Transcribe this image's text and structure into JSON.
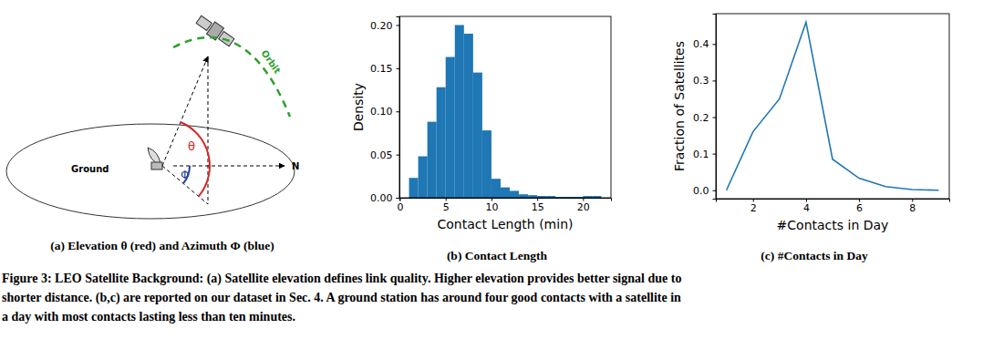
{
  "chart_data": [
    {
      "type": "histogram",
      "title": "(b) Contact Length",
      "x_label": "Contact Length (min)",
      "y_label": "Density",
      "bins": [
        1,
        2,
        3,
        4,
        5,
        6,
        7,
        8,
        9,
        10,
        11,
        12,
        13,
        14,
        15,
        16,
        17,
        18,
        19,
        20,
        21,
        22
      ],
      "values": [
        0.023,
        0.048,
        0.088,
        0.128,
        0.163,
        0.2,
        0.19,
        0.145,
        0.078,
        0.022,
        0.012,
        0.008,
        0.004,
        0.003,
        0.002,
        0.002,
        0.001,
        0.001,
        0.001,
        0.002,
        0.002
      ],
      "color": "#1f77b4",
      "xlim": [
        -0.05,
        23.05
      ],
      "xticks": [
        0,
        5,
        10,
        15,
        20
      ],
      "ylim": [
        0,
        0.21
      ],
      "yticks": [
        {
          "value": 0,
          "label": "0.00"
        },
        {
          "value": 0.05,
          "label": "0.05"
        },
        {
          "value": 0.1,
          "label": "0.10"
        },
        {
          "value": 0.15,
          "label": "0.15"
        },
        {
          "value": 0.2,
          "label": "0.20"
        }
      ]
    },
    {
      "type": "line",
      "title": "(c) #Contacts in Day",
      "x_label": "#Contacts in Day",
      "y_label": "Fraction of Satellites",
      "x": [
        1,
        2,
        3,
        4,
        5,
        6,
        7,
        8,
        9
      ],
      "values": [
        0.0,
        0.16,
        0.25,
        0.46,
        0.085,
        0.033,
        0.01,
        0.002,
        0.0
      ],
      "color": "#1f77b4",
      "xlim": [
        0.6,
        9.4
      ],
      "xticks": [
        2,
        4,
        6,
        8
      ],
      "ylim": [
        -0.023,
        0.483
      ],
      "yticks": [
        {
          "value": 0,
          "label": "0.0"
        },
        {
          "value": 0.1,
          "label": "0.1"
        },
        {
          "value": 0.2,
          "label": "0.2"
        },
        {
          "value": 0.3,
          "label": "0.3"
        },
        {
          "value": 0.4,
          "label": "0.4"
        }
      ]
    }
  ],
  "diagram": {
    "ground": "Ground",
    "north": "N",
    "elevation": "θ",
    "azimuth": "Φ",
    "orbit": "Orbit",
    "caption": "(a) Elevation θ (red) and Azimuth Φ (blue)"
  },
  "caption": [
    "Figure 3: LEO Satellite Background: (a) Satellite elevation defines link quality. Higher elevation provides better signal due to",
    "shorter distance. (b,c) are reported on our dataset in Sec. 4. A ground station has around four good contacts with a satellite in",
    "a day with most contacts lasting less than ten minutes."
  ]
}
